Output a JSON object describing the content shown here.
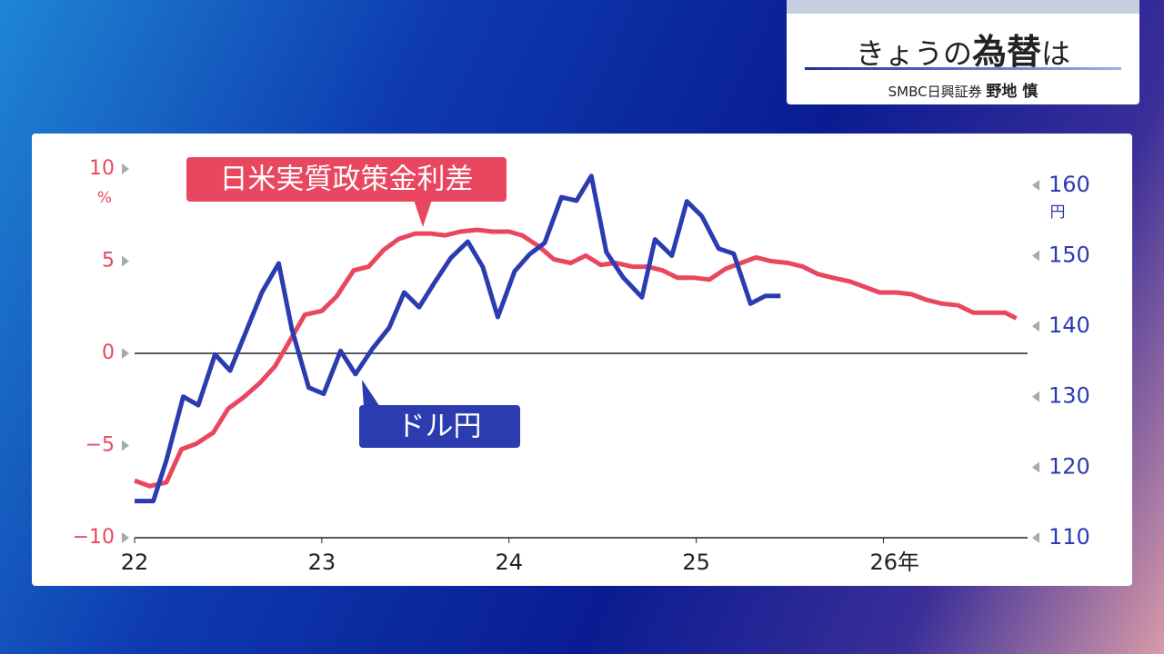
{
  "header": {
    "title": [
      "きょうの",
      "為替",
      "は"
    ],
    "source": "SMBC日興証券",
    "speaker": "野地 慎"
  },
  "chart_data": {
    "type": "line",
    "xlim": [
      22,
      26.77
    ],
    "xticks": [
      22,
      23,
      24,
      25,
      {
        "value": 26,
        "label": "26年"
      }
    ],
    "ylim": [
      -10,
      10
    ],
    "yticks": [
      {
        "value": -10,
        "label": "−10"
      },
      {
        "value": -5,
        "label": "−5"
      },
      0,
      5,
      10
    ],
    "y_unit": "%",
    "y2lim": [
      110,
      162.3
    ],
    "y2ticks": [
      110,
      120,
      130,
      140,
      150,
      160
    ],
    "y2_unit": "円",
    "series": [
      {
        "name": "日米実質政策金利差",
        "color": "#e8475f",
        "x": [
          22,
          22.08,
          22.17,
          22.25,
          22.33,
          22.42,
          22.5,
          22.58,
          22.67,
          22.75,
          22.83,
          22.91,
          23,
          23.08,
          23.17,
          23.25,
          23.33,
          23.41,
          23.5,
          23.58,
          23.66,
          23.74,
          23.83,
          23.91,
          24,
          24.07,
          24.16,
          24.24,
          24.33,
          24.41,
          24.49,
          24.57,
          24.66,
          24.74,
          24.82,
          24.9,
          24.99,
          25.07,
          25.16,
          25.24,
          25.32,
          25.4,
          25.49,
          25.57,
          25.65,
          25.73,
          25.82,
          25.9,
          25.98,
          26.07,
          26.15,
          26.23,
          26.31,
          26.4,
          26.48,
          26.56,
          26.65,
          26.71
        ],
        "values": [
          -6.9,
          -7.2,
          -7.0,
          -5.2,
          -4.9,
          -4.3,
          -3.0,
          -2.4,
          -1.6,
          -0.7,
          0.7,
          2.1,
          2.3,
          3.1,
          4.5,
          4.7,
          5.6,
          6.2,
          6.5,
          6.5,
          6.4,
          6.6,
          6.7,
          6.6,
          6.6,
          6.4,
          5.8,
          5.1,
          4.9,
          5.3,
          4.8,
          4.9,
          4.7,
          4.7,
          4.5,
          4.1,
          4.1,
          4.0,
          4.6,
          4.9,
          5.2,
          5.0,
          4.9,
          4.7,
          4.3,
          4.1,
          3.9,
          3.6,
          3.3,
          3.3,
          3.2,
          2.9,
          2.7,
          2.6,
          2.2,
          2.2,
          2.2,
          1.9
        ]
      },
      {
        "name": "ドル円",
        "color": "#2b3bb0",
        "axis": "y2",
        "x": [
          22,
          22.1,
          22.17,
          22.26,
          22.34,
          22.43,
          22.51,
          22.59,
          22.68,
          22.77,
          22.84,
          22.93,
          23.01,
          23.1,
          23.18,
          23.27,
          23.36,
          23.44,
          23.52,
          23.6,
          23.69,
          23.78,
          23.86,
          23.94,
          24.03,
          24.11,
          24.19,
          24.28,
          24.36,
          24.44,
          24.52,
          24.61,
          24.71,
          24.78,
          24.87,
          24.95,
          25.03,
          25.12,
          25.2,
          25.29,
          25.37,
          25.45
        ],
        "values": [
          115.2,
          115.2,
          121.0,
          130.0,
          128.8,
          136.0,
          133.7,
          138.9,
          144.8,
          148.9,
          139.6,
          131.3,
          130.4,
          136.5,
          133.2,
          136.8,
          139.8,
          144.8,
          142.7,
          146.1,
          149.7,
          152.0,
          148.4,
          141.3,
          147.8,
          150.2,
          151.8,
          158.3,
          157.8,
          161.3,
          150.5,
          146.9,
          144.1,
          152.3,
          150.0,
          157.7,
          155.6,
          151.0,
          150.3,
          143.2,
          144.3,
          144.3
        ]
      }
    ]
  }
}
